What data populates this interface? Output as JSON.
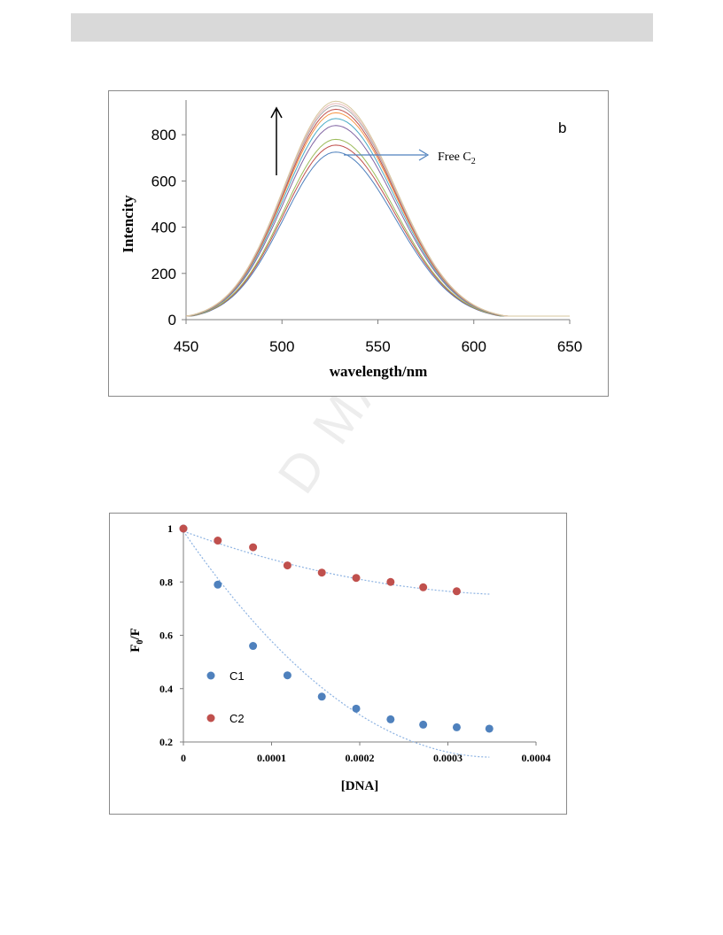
{
  "header": {
    "bar_color": "#d9d9d9"
  },
  "watermark": {
    "text": "D MAN"
  },
  "chart_data": [
    {
      "type": "line",
      "panel_label": "b",
      "xlabel": "wavelength/nm",
      "ylabel": "Intencity",
      "xlim": [
        450,
        650
      ],
      "ylim": [
        0,
        950
      ],
      "xticks": [
        "450",
        "500",
        "550",
        "600",
        "650"
      ],
      "yticks": [
        "0",
        "200",
        "400",
        "600",
        "800"
      ],
      "grid": false,
      "peak_wavelength": 528,
      "peak_heights": [
        725,
        755,
        780,
        840,
        870,
        895,
        910,
        925,
        935,
        945
      ],
      "series_colors": [
        "#4f81bd",
        "#c0504d",
        "#9bbb59",
        "#8064a2",
        "#4bacc6",
        "#f79646",
        "#c0504d",
        "#a9a9a9",
        "#e6b9b8",
        "#d7c79e"
      ],
      "annotation": {
        "text": "Free C",
        "subscript": "2"
      },
      "arrow_note": "upward arrow"
    },
    {
      "type": "scatter",
      "xlabel": "[DNA]",
      "ylabel": "F",
      "ylabel_sub": "0",
      "ylabel_suffix": "/F",
      "xlim": [
        0,
        0.0004
      ],
      "ylim": [
        0.2,
        1.0
      ],
      "xticks": [
        "0",
        "0.0001",
        "0.0002",
        "0.0003",
        "0.0004"
      ],
      "yticks": [
        "0.2",
        "0.4",
        "0.6",
        "0.8",
        "1"
      ],
      "grid": false,
      "legend_position": "left",
      "series": [
        {
          "name": "C1",
          "color": "#4f81bd",
          "x": [
            0,
            3.9e-05,
            7.9e-05,
            0.000118,
            0.000157,
            0.000196,
            0.000235,
            0.000272,
            0.00031,
            0.000347
          ],
          "y": [
            1.0,
            0.79,
            0.56,
            0.45,
            0.37,
            0.325,
            0.285,
            0.265,
            0.255,
            0.25
          ],
          "trend": [
            0.99,
            -4800,
            6800000
          ]
        },
        {
          "name": "C2",
          "color": "#c0504d",
          "x": [
            0,
            3.9e-05,
            7.9e-05,
            0.000118,
            0.000157,
            0.000196,
            0.000235,
            0.000272,
            0.00031
          ],
          "y": [
            1.0,
            0.955,
            0.93,
            0.862,
            0.835,
            0.815,
            0.8,
            0.78,
            0.765
          ],
          "trend": [
            0.99,
            -1200,
            1500000
          ]
        }
      ]
    }
  ]
}
